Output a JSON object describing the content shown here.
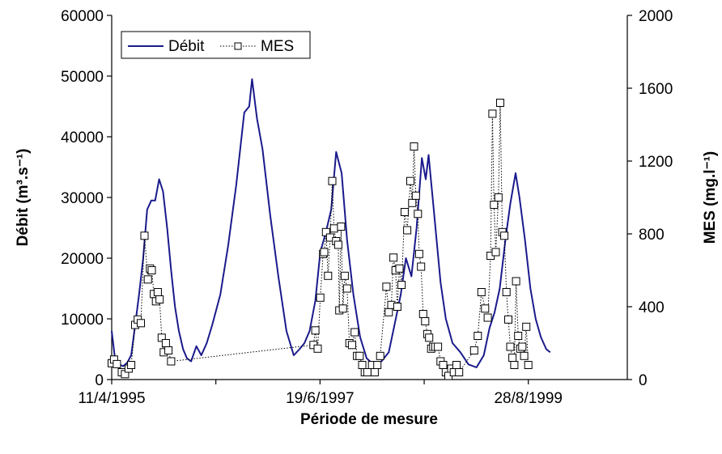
{
  "chart_data": {
    "type": "line",
    "title": "",
    "xlabel": "Période de mesure",
    "ylabel_left": "Débit (m³.s⁻¹)",
    "ylabel_right": "MES (mg.l⁻¹)",
    "x_ticks": [
      "11/4/1995",
      "19/6/1997",
      "28/8/1999"
    ],
    "y_left_ticks": [
      "0",
      "10000",
      "20000",
      "30000",
      "40000",
      "50000",
      "60000"
    ],
    "y_right_ticks": [
      "0",
      "400",
      "800",
      "1200",
      "1600",
      "2000"
    ],
    "ylim_left": [
      0,
      60000
    ],
    "ylim_right": [
      0,
      2000
    ],
    "grid": false,
    "legend_position": "top-left",
    "series": [
      {
        "name": "Débit",
        "axis": "left",
        "style": "solid",
        "color": "#1a1a8c",
        "points": [
          [
            "1995-04-11",
            8000
          ],
          [
            "1995-04-25",
            3000
          ],
          [
            "1995-05-10",
            2500
          ],
          [
            "1995-05-25",
            2200
          ],
          [
            "1995-06-10",
            2800
          ],
          [
            "1995-06-25",
            4000
          ],
          [
            "1995-07-10",
            9000
          ],
          [
            "1995-07-25",
            14000
          ],
          [
            "1995-08-10",
            20000
          ],
          [
            "1995-08-25",
            28000
          ],
          [
            "1995-09-10",
            29500
          ],
          [
            "1995-09-25",
            29500
          ],
          [
            "1995-10-10",
            33000
          ],
          [
            "1995-10-25",
            31000
          ],
          [
            "1995-11-10",
            25000
          ],
          [
            "1995-11-25",
            18000
          ],
          [
            "1995-12-10",
            12000
          ],
          [
            "1995-12-25",
            8000
          ],
          [
            "1996-01-10",
            5000
          ],
          [
            "1996-01-25",
            3500
          ],
          [
            "1996-02-10",
            3000
          ],
          [
            "1996-03-01",
            5500
          ],
          [
            "1996-03-20",
            4000
          ],
          [
            "1996-04-10",
            6000
          ],
          [
            "1996-05-01",
            9000
          ],
          [
            "1996-06-01",
            14000
          ],
          [
            "1996-07-01",
            22000
          ],
          [
            "1996-08-01",
            32000
          ],
          [
            "1996-09-01",
            44000
          ],
          [
            "1996-09-20",
            45000
          ],
          [
            "1996-10-01",
            49500
          ],
          [
            "1996-10-20",
            43000
          ],
          [
            "1996-11-10",
            38000
          ],
          [
            "1996-12-10",
            27000
          ],
          [
            "1997-01-10",
            17000
          ],
          [
            "1997-02-10",
            8000
          ],
          [
            "1997-03-10",
            4000
          ],
          [
            "1997-04-01",
            5000
          ],
          [
            "1997-04-20",
            6000
          ],
          [
            "1997-05-10",
            8000
          ],
          [
            "1997-06-01",
            13000
          ],
          [
            "1997-06-20",
            21000
          ],
          [
            "1997-07-10",
            24000
          ],
          [
            "1997-08-01",
            28000
          ],
          [
            "1997-08-20",
            37500
          ],
          [
            "1997-09-10",
            34000
          ],
          [
            "1997-10-01",
            23000
          ],
          [
            "1997-10-25",
            14000
          ],
          [
            "1997-11-20",
            7000
          ],
          [
            "1997-12-15",
            3500
          ],
          [
            "1998-01-10",
            2500
          ],
          [
            "1998-02-10",
            3000
          ],
          [
            "1998-03-10",
            4500
          ],
          [
            "1998-04-01",
            9000
          ],
          [
            "1998-04-25",
            14000
          ],
          [
            "1998-05-15",
            20000
          ],
          [
            "1998-06-05",
            17000
          ],
          [
            "1998-06-25",
            25000
          ],
          [
            "1998-07-15",
            36500
          ],
          [
            "1998-07-30",
            33000
          ],
          [
            "1998-08-10",
            37000
          ],
          [
            "1998-09-01",
            27000
          ],
          [
            "1998-09-25",
            16000
          ],
          [
            "1998-10-15",
            10000
          ],
          [
            "1998-11-10",
            6000
          ],
          [
            "1998-12-10",
            4500
          ],
          [
            "1999-01-10",
            2500
          ],
          [
            "1999-02-10",
            2000
          ],
          [
            "1999-03-10",
            4000
          ],
          [
            "1999-04-01",
            8500
          ],
          [
            "1999-04-20",
            11000
          ],
          [
            "1999-05-10",
            15000
          ],
          [
            "1999-06-01",
            23000
          ],
          [
            "1999-06-20",
            29000
          ],
          [
            "1999-07-10",
            34000
          ],
          [
            "1999-07-25",
            30000
          ],
          [
            "1999-08-15",
            23000
          ],
          [
            "1999-09-05",
            15000
          ],
          [
            "1999-09-25",
            10000
          ],
          [
            "1999-10-15",
            7000
          ],
          [
            "1999-11-05",
            5000
          ],
          [
            "1999-11-20",
            4500
          ]
        ]
      },
      {
        "name": "MES",
        "axis": "right",
        "style": "dotted-with-square-markers",
        "color": "#000000",
        "points": [
          [
            "1995-04-11",
            90
          ],
          [
            "1995-04-20",
            110
          ],
          [
            "1995-05-01",
            85
          ],
          [
            "1995-05-20",
            40
          ],
          [
            "1995-06-01",
            30
          ],
          [
            "1995-06-15",
            60
          ],
          [
            "1995-06-25",
            80
          ],
          [
            "1995-07-10",
            300
          ],
          [
            "1995-07-20",
            330
          ],
          [
            "1995-08-01",
            310
          ],
          [
            "1995-08-15",
            790
          ],
          [
            "1995-08-28",
            550
          ],
          [
            "1995-09-05",
            610
          ],
          [
            "1995-09-12",
            600
          ],
          [
            "1995-09-20",
            470
          ],
          [
            "1995-09-28",
            430
          ],
          [
            "1995-10-05",
            480
          ],
          [
            "1995-10-12",
            440
          ],
          [
            "1995-10-20",
            230
          ],
          [
            "1995-10-28",
            150
          ],
          [
            "1995-11-05",
            200
          ],
          [
            "1995-11-15",
            160
          ],
          [
            "1995-11-25",
            100
          ],
          [
            "1997-05-25",
            190
          ],
          [
            "1997-06-01",
            270
          ],
          [
            "1997-06-10",
            170
          ],
          [
            "1997-06-20",
            450
          ],
          [
            "1997-07-01",
            690
          ],
          [
            "1997-07-05",
            700
          ],
          [
            "1997-07-12",
            810
          ],
          [
            "1997-07-20",
            570
          ],
          [
            "1997-07-28",
            780
          ],
          [
            "1997-08-05",
            1090
          ],
          [
            "1997-08-12",
            830
          ],
          [
            "1997-08-20",
            760
          ],
          [
            "1997-08-28",
            740
          ],
          [
            "1997-09-01",
            380
          ],
          [
            "1997-09-08",
            840
          ],
          [
            "1997-09-15",
            390
          ],
          [
            "1997-09-22",
            570
          ],
          [
            "1997-10-01",
            500
          ],
          [
            "1997-10-10",
            200
          ],
          [
            "1997-10-20",
            190
          ],
          [
            "1997-10-30",
            260
          ],
          [
            "1997-11-08",
            130
          ],
          [
            "1997-11-18",
            130
          ],
          [
            "1997-11-28",
            80
          ],
          [
            "1997-12-08",
            40
          ],
          [
            "1997-12-18",
            40
          ],
          [
            "1998-01-05",
            80
          ],
          [
            "1998-01-15",
            40
          ],
          [
            "1998-01-25",
            80
          ],
          [
            "1998-02-05",
            130
          ],
          [
            "1998-03-01",
            510
          ],
          [
            "1998-03-10",
            370
          ],
          [
            "1998-03-20",
            410
          ],
          [
            "1998-03-28",
            670
          ],
          [
            "1998-04-05",
            600
          ],
          [
            "1998-04-12",
            400
          ],
          [
            "1998-04-20",
            610
          ],
          [
            "1998-04-28",
            520
          ],
          [
            "1998-05-10",
            920
          ],
          [
            "1998-05-20",
            820
          ],
          [
            "1998-06-01",
            1090
          ],
          [
            "1998-06-08",
            970
          ],
          [
            "1998-06-15",
            1280
          ],
          [
            "1998-06-22",
            1010
          ],
          [
            "1998-06-30",
            910
          ],
          [
            "1998-07-05",
            690
          ],
          [
            "1998-07-12",
            620
          ],
          [
            "1998-07-20",
            360
          ],
          [
            "1998-07-28",
            320
          ],
          [
            "1998-08-05",
            250
          ],
          [
            "1998-08-12",
            230
          ],
          [
            "1998-08-20",
            170
          ],
          [
            "1998-08-28",
            180
          ],
          [
            "1998-09-05",
            180
          ],
          [
            "1998-09-15",
            180
          ],
          [
            "1998-09-25",
            100
          ],
          [
            "1998-10-05",
            80
          ],
          [
            "1998-10-15",
            40
          ],
          [
            "1998-10-25",
            20
          ],
          [
            "1998-11-05",
            60
          ],
          [
            "1998-11-15",
            40
          ],
          [
            "1998-11-25",
            80
          ],
          [
            "1998-12-05",
            40
          ],
          [
            "1999-02-01",
            160
          ],
          [
            "1999-02-15",
            240
          ],
          [
            "1999-03-01",
            480
          ],
          [
            "1999-03-15",
            390
          ],
          [
            "1999-03-25",
            340
          ],
          [
            "1999-04-05",
            680
          ],
          [
            "1999-04-12",
            1460
          ],
          [
            "1999-04-18",
            960
          ],
          [
            "1999-04-25",
            700
          ],
          [
            "1999-05-05",
            1000
          ],
          [
            "1999-05-12",
            1520
          ],
          [
            "1999-05-20",
            810
          ],
          [
            "1999-05-28",
            790
          ],
          [
            "1999-06-05",
            480
          ],
          [
            "1999-06-12",
            330
          ],
          [
            "1999-06-20",
            180
          ],
          [
            "1999-06-28",
            120
          ],
          [
            "1999-07-05",
            80
          ],
          [
            "1999-07-12",
            540
          ],
          [
            "1999-07-20",
            240
          ],
          [
            "1999-07-28",
            170
          ],
          [
            "1999-08-05",
            180
          ],
          [
            "1999-08-12",
            130
          ],
          [
            "1999-08-20",
            290
          ],
          [
            "1999-08-28",
            80
          ]
        ]
      }
    ]
  }
}
